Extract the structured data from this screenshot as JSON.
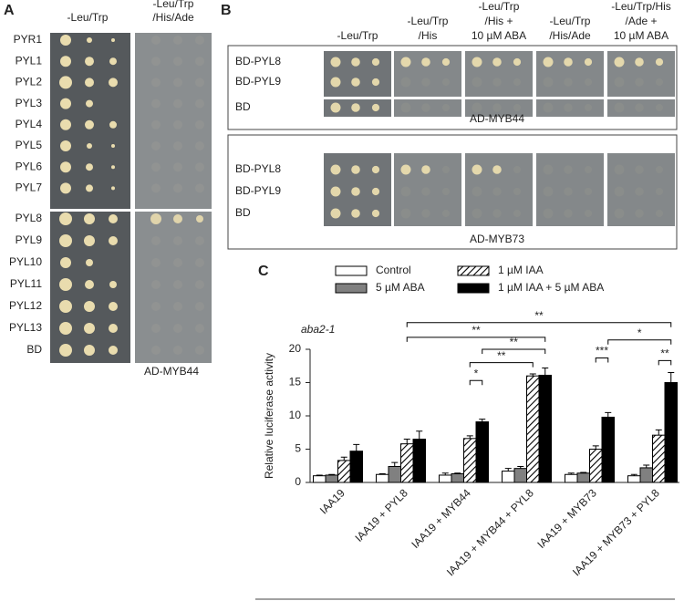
{
  "panel_a": {
    "letter": "A",
    "columns": [
      [
        "-Leu/Trp"
      ],
      [
        "-Leu/Trp",
        "/His/Ade"
      ]
    ],
    "rows": [
      "PYR1",
      "PYL1",
      "PYL2",
      "PYL3",
      "PYL4",
      "PYL5",
      "PYL6",
      "PYL7",
      "PYL8",
      "PYL9",
      "PYL10",
      "PYL11",
      "PYL12",
      "PYL13",
      "BD"
    ],
    "footer": "AD-MYB44"
  },
  "panel_b": {
    "letter": "B",
    "columns": [
      [
        "-Leu/Trp"
      ],
      [
        "-Leu/Trp",
        "/His"
      ],
      [
        "-Leu/Trp",
        "/His +",
        "10 µM ABA"
      ],
      [
        "-Leu/Trp",
        "/His/Ade"
      ],
      [
        "-Leu/Trp/His",
        "/Ade +",
        "10 µM ABA"
      ]
    ],
    "blocks": [
      {
        "rows": [
          "BD-PYL8",
          "BD-PYL9",
          "BD"
        ],
        "label": "AD-MYB44"
      },
      {
        "rows": [
          "BD-PYL8",
          "BD-PYL9",
          "BD"
        ],
        "label": "AD-MYB73"
      }
    ]
  },
  "chart_data": {
    "type": "bar",
    "panel_label": "C",
    "annotation": "aba2-1",
    "ylabel": "Relative luciferase activity",
    "categories": [
      "IAA19",
      "IAA19 + PYL8",
      "IAA19 + MYB44",
      "IAA19 + MYB44 + PYL8",
      "IAA19 + MYB73",
      "IAA19 + MYB73 + PYL8"
    ],
    "series": [
      {
        "name": "Control",
        "color": "#ffffff",
        "values": [
          1.0,
          1.2,
          1.1,
          1.7,
          1.2,
          1.0
        ],
        "errors": [
          0.1,
          0.1,
          0.3,
          0.4,
          0.2,
          0.2
        ]
      },
      {
        "name": "5 µM ABA",
        "color": "#808080",
        "values": [
          1.1,
          2.4,
          1.3,
          2.1,
          1.4,
          2.2
        ],
        "errors": [
          0.1,
          0.6,
          0.1,
          0.3,
          0.1,
          0.4
        ]
      },
      {
        "name": "1 µM IAA",
        "color": "#ffffff",
        "hatch": true,
        "values": [
          3.3,
          5.8,
          6.6,
          16.0,
          5.0,
          7.1
        ],
        "errors": [
          0.5,
          0.7,
          0.4,
          0.3,
          0.5,
          0.8
        ]
      },
      {
        "name": "1 µM IAA + 5 µM ABA",
        "color": "#000000",
        "values": [
          4.7,
          6.5,
          9.1,
          16.1,
          9.8,
          15.0
        ],
        "errors": [
          1.0,
          1.2,
          0.4,
          1.1,
          0.7,
          1.5
        ]
      }
    ],
    "ylim": [
      0,
      20
    ],
    "yticks": [
      0,
      5,
      10,
      15,
      20
    ],
    "significance": [
      {
        "text": "*",
        "y": 15.3,
        "from": [
          2,
          2
        ],
        "to": [
          2,
          3
        ]
      },
      {
        "text": "**",
        "y": 18.0,
        "from": [
          2,
          2
        ],
        "to": [
          3,
          2
        ]
      },
      {
        "text": "**",
        "y": 20.0,
        "from": [
          2,
          3
        ],
        "to": [
          3,
          3
        ]
      },
      {
        "text": "**",
        "y": 21.8,
        "from": [
          1,
          2
        ],
        "to": [
          3,
          3
        ]
      },
      {
        "text": "**",
        "y": 24.0,
        "from": [
          1,
          2
        ],
        "to": [
          5,
          3
        ]
      },
      {
        "text": "***",
        "y": 18.7,
        "from": [
          4,
          2
        ],
        "to": [
          4,
          3
        ]
      },
      {
        "text": "*",
        "y": 21.4,
        "from": [
          4,
          3
        ],
        "to": [
          5,
          3
        ]
      },
      {
        "text": "**",
        "y": 18.3,
        "from": [
          5,
          2
        ],
        "to": [
          5,
          3
        ]
      }
    ]
  }
}
